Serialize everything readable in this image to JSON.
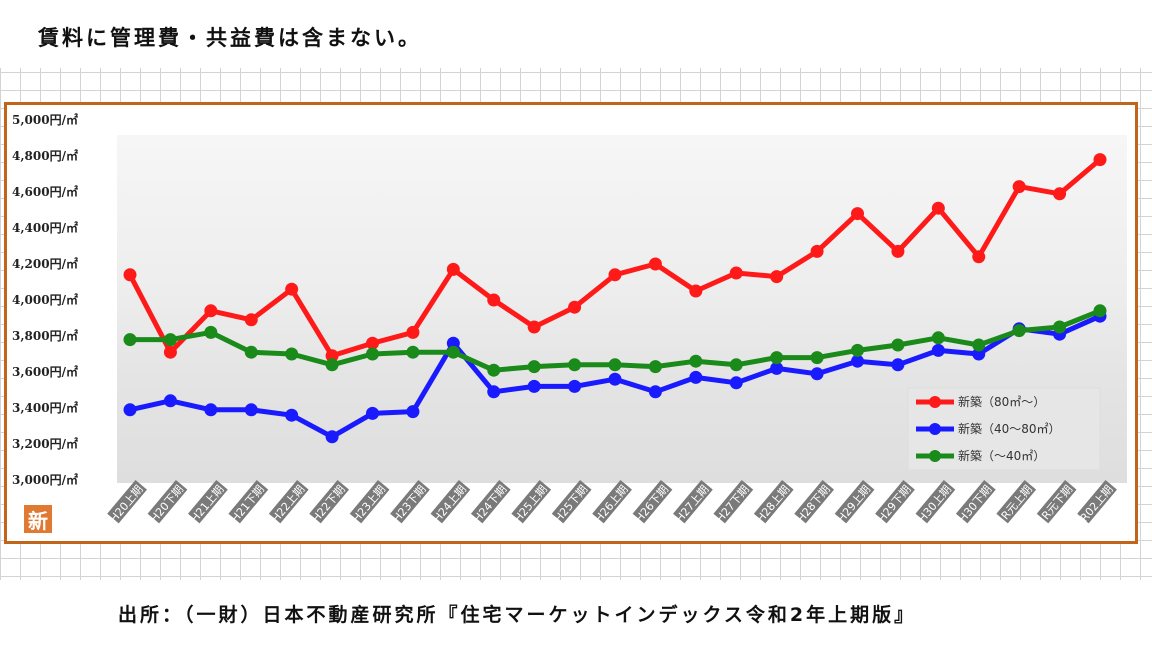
{
  "note": "賃料に管理費・共益費は含まない。",
  "source": "出所：（一財）日本不動産研究所『住宅マーケットインデックス令和2年上期版』",
  "logo_text": "新",
  "colors": {
    "frame": "#c0651a",
    "red": "#ff1a1a",
    "blue": "#1a1aff",
    "green": "#1a8a1a"
  },
  "chart_data": {
    "type": "line",
    "title": "",
    "xlabel": "",
    "ylabel": "",
    "ylim": [
      3000,
      5000
    ],
    "yticks": [
      "5,000円/㎡",
      "4,800円/㎡",
      "4,600円/㎡",
      "4,400円/㎡",
      "4,200円/㎡",
      "4,000円/㎡",
      "3,800円/㎡",
      "3,600円/㎡",
      "3,400円/㎡",
      "3,200円/㎡",
      "3,000円/㎡"
    ],
    "ytick_values": [
      5000,
      4800,
      4600,
      4400,
      4200,
      4000,
      3800,
      3600,
      3400,
      3200,
      3000
    ],
    "categories": [
      "H20上期",
      "H20下期",
      "H21上期",
      "H21下期",
      "H22上期",
      "H22下期",
      "H23上期",
      "H23下期",
      "H24上期",
      "H24下期",
      "H25上期",
      "H25下期",
      "H26上期",
      "H26下期",
      "H27上期",
      "H27下期",
      "H28上期",
      "H28下期",
      "H29上期",
      "H29下期",
      "H30上期",
      "H30下期",
      "R元上期",
      "R元下期",
      "R02上期"
    ],
    "legend_position": "bottom-right",
    "series": [
      {
        "name": "新築（80㎡～）",
        "color": "#ff1a1a",
        "values": [
          4140,
          3710,
          3940,
          3890,
          4060,
          3690,
          3760,
          3820,
          4170,
          4000,
          3850,
          3960,
          4140,
          4200,
          4050,
          4150,
          4130,
          4270,
          4480,
          4270,
          4510,
          4240,
          4630,
          4590,
          4780
        ]
      },
      {
        "name": "新築（40～80㎡）",
        "color": "#1a1aff",
        "values": [
          3390,
          3440,
          3390,
          3390,
          3360,
          3240,
          3370,
          3380,
          3760,
          3490,
          3520,
          3520,
          3560,
          3490,
          3570,
          3540,
          3620,
          3590,
          3660,
          3640,
          3720,
          3700,
          3840,
          3810,
          3910
        ]
      },
      {
        "name": "新築（～40㎡）",
        "color": "#1a8a1a",
        "values": [
          3780,
          3780,
          3820,
          3710,
          3700,
          3640,
          3700,
          3710,
          3710,
          3610,
          3630,
          3640,
          3640,
          3630,
          3660,
          3640,
          3680,
          3680,
          3720,
          3750,
          3790,
          3750,
          3830,
          3850,
          3940
        ]
      }
    ]
  }
}
